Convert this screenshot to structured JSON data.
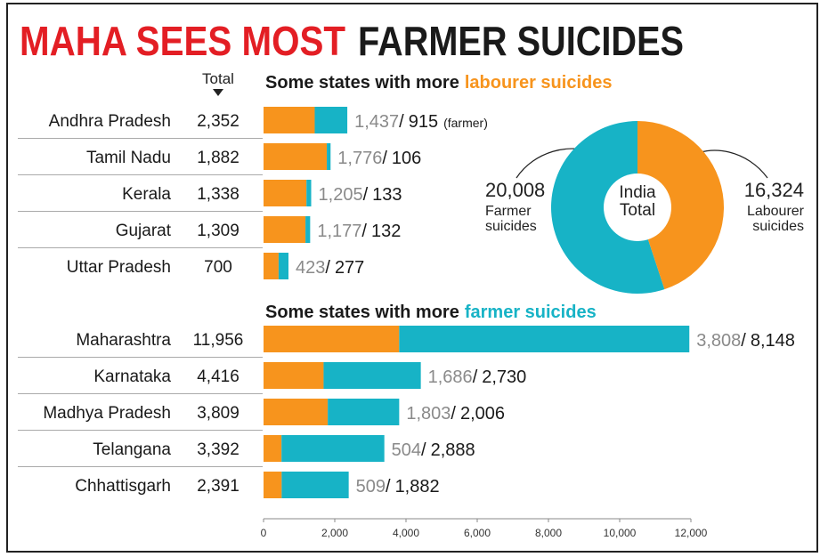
{
  "title": {
    "highlight": "MAHA SEES MOST",
    "rest": "FARMER SUICIDES"
  },
  "column_header": "Total",
  "chart_data": [
    {
      "type": "bar",
      "orientation": "horizontal",
      "stacked": true,
      "subtitle": "Some states with more",
      "subtitle_highlight": "labourer suicides",
      "highlight_color": "#f7941d",
      "categories": [
        "Andhra Pradesh",
        "Tamil Nadu",
        "Kerala",
        "Gujarat",
        "Uttar Pradesh"
      ],
      "totals": [
        "2,352",
        "1,882",
        "1,338",
        "1,309",
        "700"
      ],
      "separator": "/",
      "annotation": "(farmer)",
      "series": [
        {
          "color": "#f7941d",
          "values": [
            1437,
            1776,
            1205,
            1177,
            423
          ],
          "value_labels": [
            "1,437",
            "1,776",
            "1,205",
            "1,177",
            "423"
          ]
        },
        {
          "color": "#17b3c6",
          "values": [
            915,
            106,
            133,
            132,
            277
          ],
          "value_labels": [
            "915",
            "106",
            "133",
            "132",
            "277"
          ]
        }
      ],
      "xlim": [
        0,
        12000
      ]
    },
    {
      "type": "bar",
      "orientation": "horizontal",
      "stacked": true,
      "subtitle": "Some states with more",
      "subtitle_highlight": "farmer suicides",
      "highlight_color": "#17b3c6",
      "categories": [
        "Maharashtra",
        "Karnataka",
        "Madhya Pradesh",
        "Telangana",
        "Chhattisgarh"
      ],
      "totals": [
        "11,956",
        "4,416",
        "3,809",
        "3,392",
        "2,391"
      ],
      "separator": "/",
      "series": [
        {
          "color": "#f7941d",
          "values": [
            3808,
            1686,
            1803,
            504,
            509
          ],
          "value_labels": [
            "3,808",
            "1,686",
            "1,803",
            "504",
            "509"
          ]
        },
        {
          "color": "#17b3c6",
          "values": [
            8148,
            2730,
            2006,
            2888,
            1882
          ],
          "value_labels": [
            "8,148",
            "2,730",
            "2,006",
            "2,888",
            "1,882"
          ]
        }
      ],
      "xlim": [
        0,
        12000
      ],
      "xticks": [
        0,
        {
          "value": 2000,
          "label": "2,000"
        },
        {
          "value": 4000,
          "label": "4,000"
        },
        {
          "value": 6000,
          "label": "6,000"
        },
        {
          "value": 8000,
          "label": "8,000"
        },
        {
          "value": 10000,
          "label": "10,000"
        },
        {
          "value": 12000,
          "label": "12,000"
        }
      ]
    },
    {
      "type": "pie",
      "title": "India Total",
      "categories": [
        "Farmer suicides",
        "Labourer suicides"
      ],
      "values": [
        20008,
        16324
      ],
      "value_labels": [
        "20,008",
        "16,324"
      ],
      "colors": [
        "#17b3c6",
        "#f7941d"
      ]
    }
  ]
}
